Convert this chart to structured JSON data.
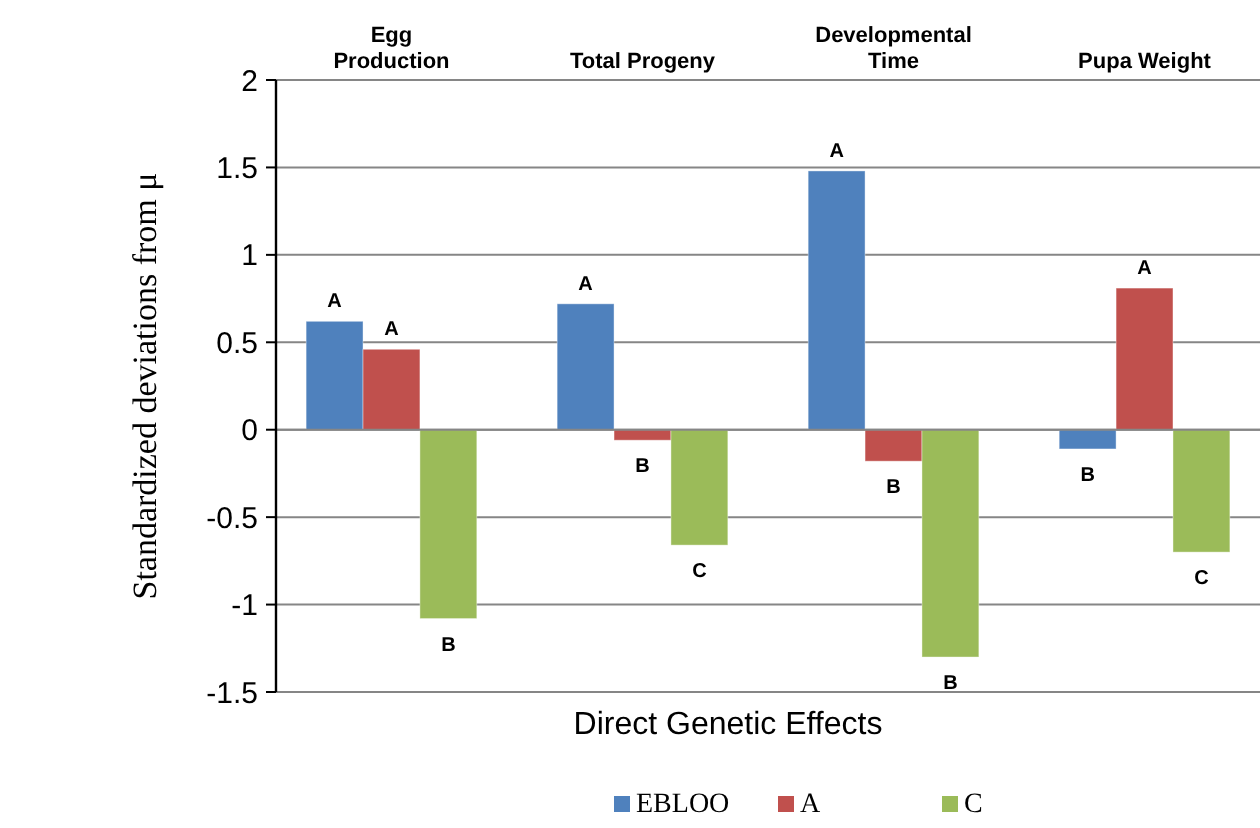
{
  "chart_data": {
    "type": "bar",
    "xlabel": "Direct Genetic Effects",
    "ylabel": "Standardized deviations from μ",
    "categories": [
      "Egg\nProduction",
      "Total Progeny",
      "Developmental\nTime",
      "Pupa Weight"
    ],
    "series": [
      {
        "name": "EBLOO",
        "color": "#4f81bd",
        "values": [
          0.62,
          0.72,
          1.48,
          -0.11
        ],
        "value_labels": [
          "A",
          "A",
          "A",
          "B"
        ]
      },
      {
        "name": "A",
        "color": "#c0504d",
        "values": [
          0.46,
          -0.06,
          -0.18,
          0.81
        ],
        "value_labels": [
          "A",
          "B",
          "B",
          "A"
        ]
      },
      {
        "name": "C",
        "color": "#9bbb59",
        "values": [
          -1.08,
          -0.66,
          -1.3,
          -0.7
        ],
        "value_labels": [
          "B",
          "C",
          "B",
          "C"
        ]
      }
    ],
    "ylim": [
      -1.5,
      2
    ],
    "yticks": [
      -1.5,
      -1,
      -0.5,
      0,
      0.5,
      1,
      1.5,
      2
    ],
    "grid": "y",
    "legend": "bottom"
  }
}
